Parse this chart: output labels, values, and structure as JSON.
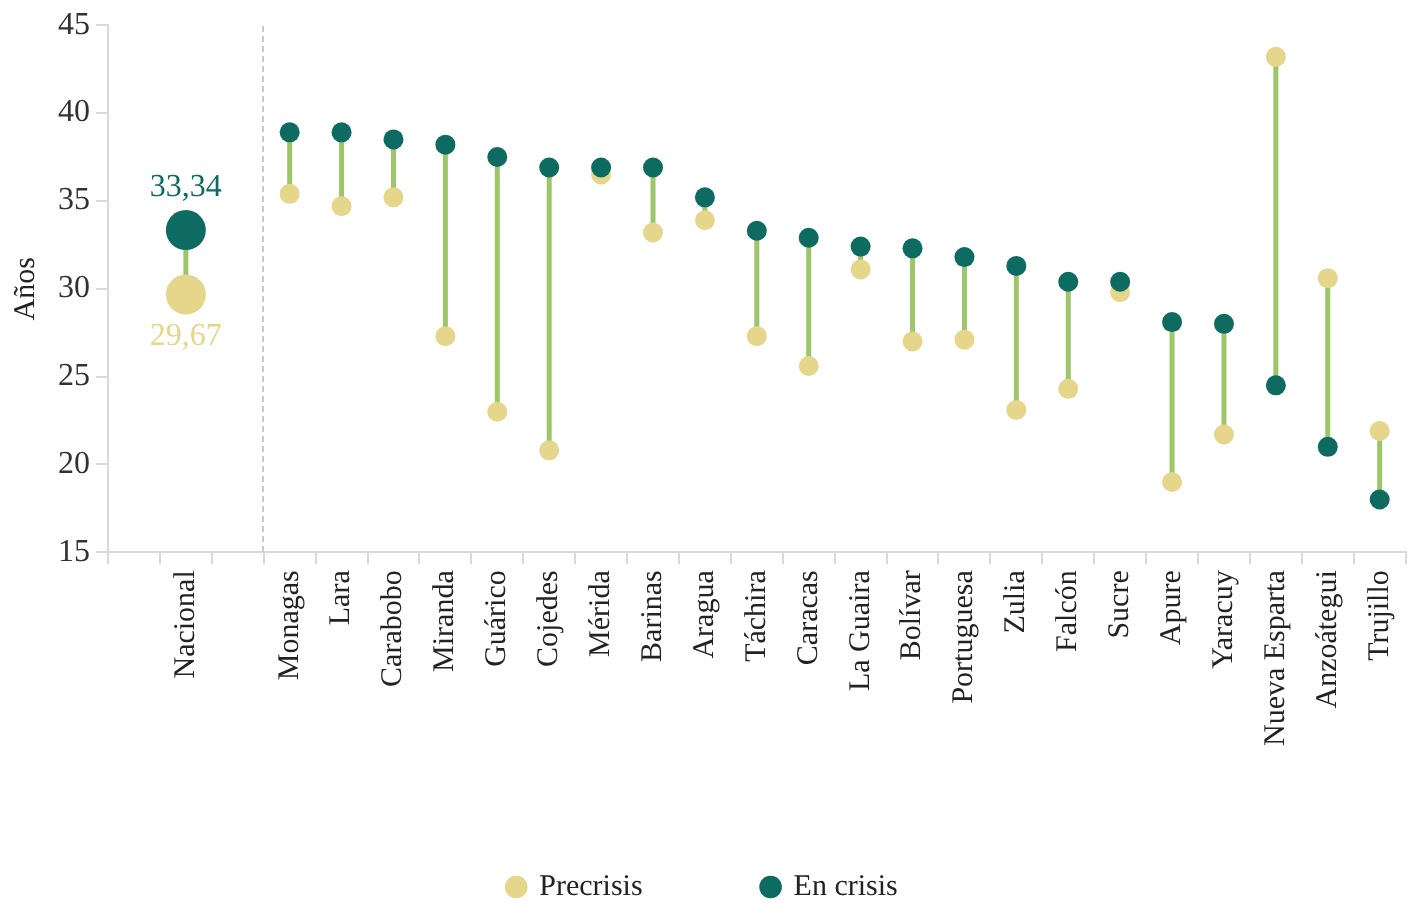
{
  "chart_data": {
    "type": "scatter",
    "ylabel": "Años",
    "categories": [
      null,
      "Nacional",
      null,
      "Monagas",
      "Lara",
      "Carabobo",
      "Miranda",
      "Guárico",
      "Cojedes",
      "Mérida",
      "Barinas",
      "Aragua",
      "Táchira",
      "Caracas",
      "La Guaira",
      "Bolívar",
      "Portuguesa",
      "Zulia",
      "Falcón",
      "Sucre",
      "Apure",
      "Yaracuy",
      "Nueva Esparta",
      "Anzoátegui",
      "Trujillo"
    ],
    "series": [
      {
        "name": "Precrisis",
        "color": "#e5d68b",
        "sizes": [
          null,
          1,
          null,
          0.25,
          0.25,
          0.25,
          0.25,
          0.25,
          0.25,
          0.25,
          0.25,
          0.25,
          0.25,
          0.25,
          0.25,
          0.25,
          0.25,
          0.25,
          0.25,
          0.25,
          0.25,
          0.25,
          0.25,
          0.25,
          0.25
        ],
        "values": [
          null,
          29.67,
          null,
          35.4,
          34.7,
          35.2,
          27.3,
          23.0,
          20.8,
          36.5,
          33.2,
          33.9,
          27.3,
          25.6,
          31.1,
          27.0,
          27.1,
          23.1,
          24.3,
          29.8,
          19.0,
          21.7,
          43.2,
          30.6,
          21.9
        ],
        "value_labels": [
          null,
          "29,67",
          null,
          null,
          null,
          null,
          null,
          null,
          null,
          null,
          null,
          null,
          null,
          null,
          null,
          null,
          null,
          null,
          null,
          null,
          null,
          null,
          null,
          null,
          null
        ]
      },
      {
        "name": "En crisis",
        "color": "#0e6b62",
        "sizes": [
          null,
          1,
          null,
          0.25,
          0.25,
          0.25,
          0.25,
          0.25,
          0.25,
          0.25,
          0.25,
          0.25,
          0.25,
          0.25,
          0.25,
          0.25,
          0.25,
          0.25,
          0.25,
          0.25,
          0.25,
          0.25,
          0.25,
          0.25,
          0.25
        ],
        "values": [
          null,
          33.34,
          null,
          38.9,
          38.9,
          38.5,
          38.2,
          37.5,
          36.9,
          36.9,
          36.9,
          35.2,
          33.3,
          32.9,
          32.4,
          32.3,
          31.8,
          31.3,
          30.4,
          30.4,
          28.1,
          28.0,
          24.5,
          21.0,
          18.0
        ],
        "value_labels": [
          null,
          "33,34",
          null,
          null,
          null,
          null,
          null,
          null,
          null,
          null,
          null,
          null,
          null,
          null,
          null,
          null,
          null,
          null,
          null,
          null,
          null,
          null,
          null,
          null,
          null
        ]
      }
    ],
    "ylim": [
      15,
      45
    ],
    "yticks": [
      15,
      20,
      25,
      30,
      35,
      40,
      45
    ],
    "grid": false,
    "legend": "bottom",
    "marker": "circle"
  }
}
